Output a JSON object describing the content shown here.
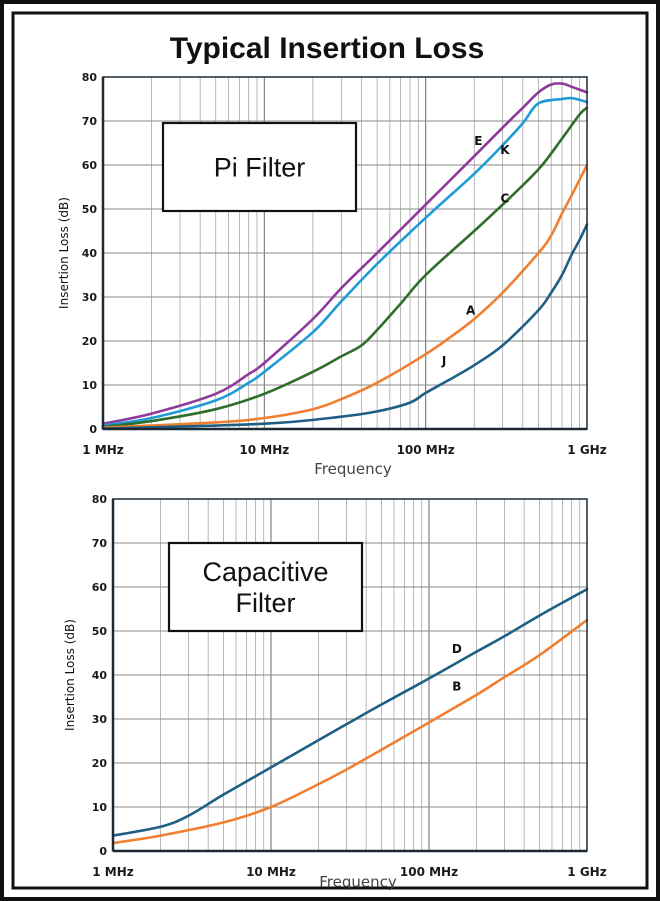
{
  "title": "Typical Insertion Loss",
  "chart_data": [
    {
      "type": "line",
      "box_label": [
        "Pi Filter"
      ],
      "xlabel": "Frequency",
      "ylabel": "Insertion Loss (dB)",
      "xscale": "log",
      "xlim": [
        1,
        1000
      ],
      "ylim": [
        0,
        80
      ],
      "yticks": [
        0,
        10,
        20,
        30,
        40,
        50,
        60,
        70,
        80
      ],
      "xticks": [
        {
          "value": 1,
          "label": "1 MHz"
        },
        {
          "value": 10,
          "label": "10 MHz"
        },
        {
          "value": 100,
          "label": "100 MHz"
        },
        {
          "value": 1000,
          "label": "1 GHz"
        }
      ],
      "grid": true,
      "series": [
        {
          "name": "E",
          "color": "#8e3a9a",
          "label_at": [
            212,
            64.5
          ],
          "points": [
            [
              1,
              1.2
            ],
            [
              2,
              3.5
            ],
            [
              5,
              8
            ],
            [
              8,
              12.5
            ],
            [
              10,
              15
            ],
            [
              20,
              25
            ],
            [
              30,
              32
            ],
            [
              50,
              40
            ],
            [
              100,
              51
            ],
            [
              200,
              62
            ],
            [
              300,
              68.5
            ],
            [
              400,
              73
            ],
            [
              500,
              76.5
            ],
            [
              600,
              78.3
            ],
            [
              700,
              78.5
            ],
            [
              800,
              77.8
            ],
            [
              1000,
              76.5
            ]
          ]
        },
        {
          "name": "K",
          "color": "#1e9bd7",
          "label_at": [
            310,
            62.5
          ],
          "points": [
            [
              1,
              0.8
            ],
            [
              2,
              2.5
            ],
            [
              5,
              6.5
            ],
            [
              8,
              10.5
            ],
            [
              10,
              13
            ],
            [
              20,
              22
            ],
            [
              30,
              29
            ],
            [
              50,
              37.5
            ],
            [
              100,
              48
            ],
            [
              200,
              58
            ],
            [
              300,
              64.5
            ],
            [
              400,
              69.5
            ],
            [
              500,
              74
            ],
            [
              700,
              75
            ],
            [
              800,
              75.2
            ],
            [
              900,
              74.8
            ],
            [
              1000,
              74.3
            ]
          ]
        },
        {
          "name": "C",
          "color": "#2e6e2a",
          "label_at": [
            310,
            51.5
          ],
          "points": [
            [
              1,
              0.5
            ],
            [
              2,
              1.8
            ],
            [
              5,
              4.5
            ],
            [
              10,
              8
            ],
            [
              20,
              13
            ],
            [
              30,
              16.5
            ],
            [
              40,
              19
            ],
            [
              50,
              22.5
            ],
            [
              70,
              28.5
            ],
            [
              100,
              35
            ],
            [
              200,
              45
            ],
            [
              300,
              51
            ],
            [
              500,
              59
            ],
            [
              700,
              66
            ],
            [
              900,
              71.5
            ],
            [
              1000,
              73
            ]
          ]
        },
        {
          "name": "A",
          "color": "#f07f2f",
          "label_at": [
            190,
            26
          ],
          "points": [
            [
              1,
              0.3
            ],
            [
              5,
              1.5
            ],
            [
              10,
              2.5
            ],
            [
              20,
              4.5
            ],
            [
              30,
              6.8
            ],
            [
              50,
              10.5
            ],
            [
              100,
              17
            ],
            [
              150,
              21.5
            ],
            [
              200,
              25
            ],
            [
              300,
              31
            ],
            [
              500,
              40
            ],
            [
              600,
              44
            ],
            [
              700,
              49
            ],
            [
              800,
              53
            ],
            [
              1000,
              60
            ]
          ]
        },
        {
          "name": "J",
          "color": "#1f5f85",
          "label_at": [
            130,
            14.5
          ],
          "points": [
            [
              1,
              0.1
            ],
            [
              10,
              1.2
            ],
            [
              30,
              2.8
            ],
            [
              50,
              4
            ],
            [
              80,
              6
            ],
            [
              100,
              8.2
            ],
            [
              150,
              11.8
            ],
            [
              200,
              14.5
            ],
            [
              300,
              19
            ],
            [
              500,
              27
            ],
            [
              600,
              31
            ],
            [
              700,
              35
            ],
            [
              800,
              39.5
            ],
            [
              900,
              43
            ],
            [
              1000,
              46.5
            ]
          ]
        }
      ]
    },
    {
      "type": "line",
      "box_label": [
        "Capacitive",
        "Filter"
      ],
      "xlabel": "Frequency",
      "ylabel": "Insertion Loss (dB)",
      "xscale": "log",
      "xlim": [
        1,
        1000
      ],
      "ylim": [
        0,
        80
      ],
      "yticks": [
        0,
        10,
        20,
        30,
        40,
        50,
        60,
        70,
        80
      ],
      "xticks": [
        {
          "value": 1,
          "label": "1 MHz"
        },
        {
          "value": 10,
          "label": "10 MHz"
        },
        {
          "value": 100,
          "label": "100 MHz"
        },
        {
          "value": 1000,
          "label": "1 GHz"
        }
      ],
      "grid": true,
      "series": [
        {
          "name": "D",
          "color": "#1f5f85",
          "label_at": [
            150,
            45
          ],
          "points": [
            [
              1,
              3.5
            ],
            [
              2,
              5.5
            ],
            [
              3,
              8
            ],
            [
              5,
              12.8
            ],
            [
              10,
              19
            ],
            [
              20,
              25.2
            ],
            [
              30,
              28.8
            ],
            [
              50,
              33.3
            ],
            [
              100,
              39.2
            ],
            [
              200,
              45.3
            ],
            [
              300,
              48.8
            ],
            [
              500,
              53.5
            ],
            [
              1000,
              59.5
            ]
          ]
        },
        {
          "name": "B",
          "color": "#f07f2f",
          "label_at": [
            150,
            36.5
          ],
          "points": [
            [
              1,
              1.8
            ],
            [
              2,
              3.5
            ],
            [
              5,
              6.5
            ],
            [
              10,
              10
            ],
            [
              20,
              15.2
            ],
            [
              30,
              18.5
            ],
            [
              50,
              23
            ],
            [
              100,
              29.2
            ],
            [
              200,
              35.5
            ],
            [
              300,
              39.5
            ],
            [
              500,
              44.5
            ],
            [
              1000,
              52.5
            ]
          ]
        }
      ]
    }
  ]
}
